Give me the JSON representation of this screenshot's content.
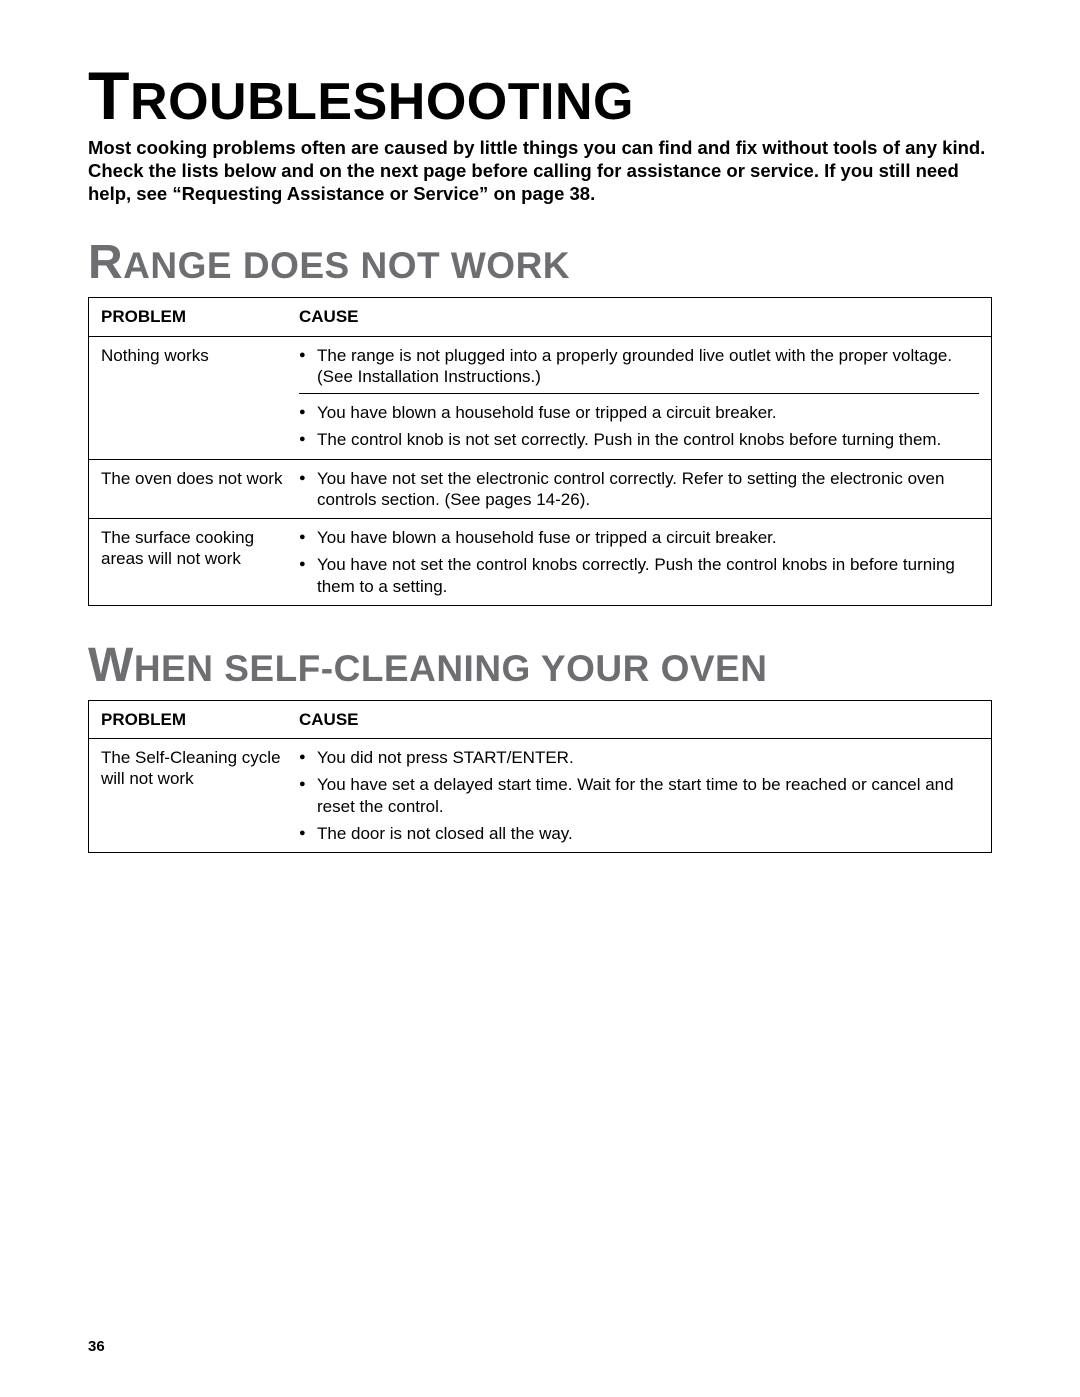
{
  "page": {
    "title_first": "T",
    "title_rest": "ROUBLESHOOTING",
    "intro": "Most cooking problems often are caused by little things you can find and fix without tools of any kind. Check the lists below and on the next page before calling for assistance or service. If you still need help, see “Requesting Assistance or Service” on page 38.",
    "page_number": "36"
  },
  "headers": {
    "problem": "PROBLEM",
    "cause": "CAUSE"
  },
  "section1": {
    "title_first": "R",
    "title_rest": "ANGE DOES NOT WORK",
    "rows": [
      {
        "problem": "Nothing works",
        "causes_a": [
          "The range is not plugged into a properly grounded live outlet with the proper voltage. (See Installation Instructions.)"
        ],
        "causes_b": [
          "You have blown a household fuse or tripped a circuit breaker.",
          "The control knob is not set correctly. Push in the control knobs before turning them."
        ]
      },
      {
        "problem": "The oven does not work",
        "causes_a": [
          "You have not set the electronic control correctly. Refer to setting the electronic oven controls section. (See pages 14-26)."
        ]
      },
      {
        "problem": "The surface cooking areas will not work",
        "causes_a": [
          "You have blown a household fuse or tripped a circuit breaker.",
          "You have not set the control knobs correctly. Push the control knobs in before turning them to a setting."
        ]
      }
    ]
  },
  "section2": {
    "title_first": "W",
    "title_rest": "HEN SELF-CLEANING YOUR OVEN",
    "rows": [
      {
        "problem": "The Self-Cleaning cycle will not work",
        "causes_a": [
          "You did not press START/ENTER.",
          "You have set a delayed start time. Wait for the start time to be reached or cancel and reset the control.",
          "The door is not closed all the way."
        ]
      }
    ]
  }
}
